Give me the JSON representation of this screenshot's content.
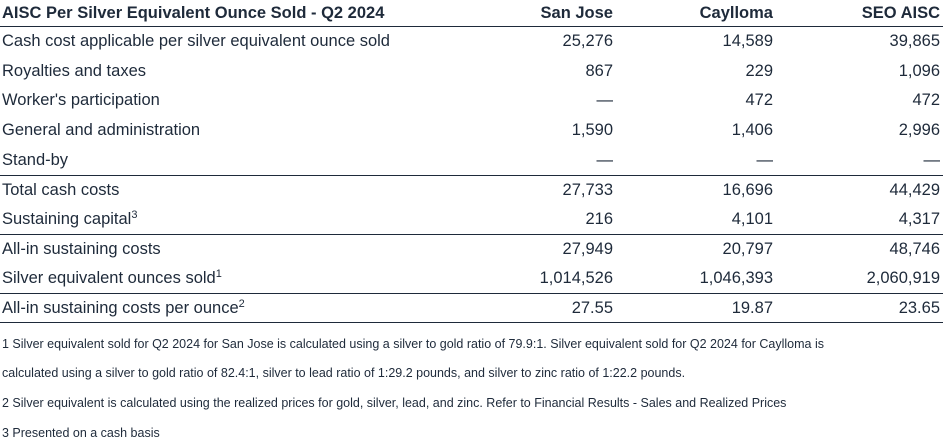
{
  "table": {
    "title": "AISC Per Silver Equivalent Ounce Sold - Q2 2024",
    "columns": [
      "San Jose",
      "Caylloma",
      "SEO AISC"
    ],
    "rows": [
      {
        "label": "Cash cost applicable per silver equivalent ounce sold",
        "sup": "",
        "values": [
          "25,276",
          "14,589",
          "39,865"
        ]
      },
      {
        "label": "Royalties and taxes",
        "sup": "",
        "values": [
          "867",
          "229",
          "1,096"
        ]
      },
      {
        "label": "Worker's participation",
        "sup": "",
        "values": [
          "—",
          "472",
          "472"
        ]
      },
      {
        "label": "General and administration",
        "sup": "",
        "values": [
          "1,590",
          "1,406",
          "2,996"
        ]
      },
      {
        "label": "Stand-by",
        "sup": "",
        "values": [
          "—",
          "—",
          "—"
        ]
      },
      {
        "label": "Total cash costs",
        "sup": "",
        "values": [
          "27,733",
          "16,696",
          "44,429"
        ]
      },
      {
        "label": "Sustaining capital",
        "sup": "3",
        "values": [
          "216",
          "4,101",
          "4,317"
        ]
      },
      {
        "label": "All-in sustaining costs",
        "sup": "",
        "values": [
          "27,949",
          "20,797",
          "48,746"
        ]
      },
      {
        "label": "Silver equivalent ounces sold",
        "sup": "1",
        "values": [
          "1,014,526",
          "1,046,393",
          "2,060,919"
        ]
      },
      {
        "label": "All-in sustaining costs per ounce",
        "sup": "2",
        "values": [
          "27.55",
          "19.87",
          "23.65"
        ]
      }
    ]
  },
  "footnotes": [
    "1 Silver equivalent sold for Q2 2024 for San Jose is calculated using a silver to gold ratio of 79.9:1. Silver equivalent sold for Q2 2024 for Caylloma is",
    "calculated using a silver to gold ratio of 82.4:1, silver to lead ratio of 1:29.2 pounds, and silver to zinc ratio of 1:22.2 pounds.",
    "2 Silver equivalent is calculated using the realized prices for gold, silver, lead, and zinc. Refer to Financial Results - Sales and Realized Prices",
    "3 Presented on a cash basis"
  ]
}
